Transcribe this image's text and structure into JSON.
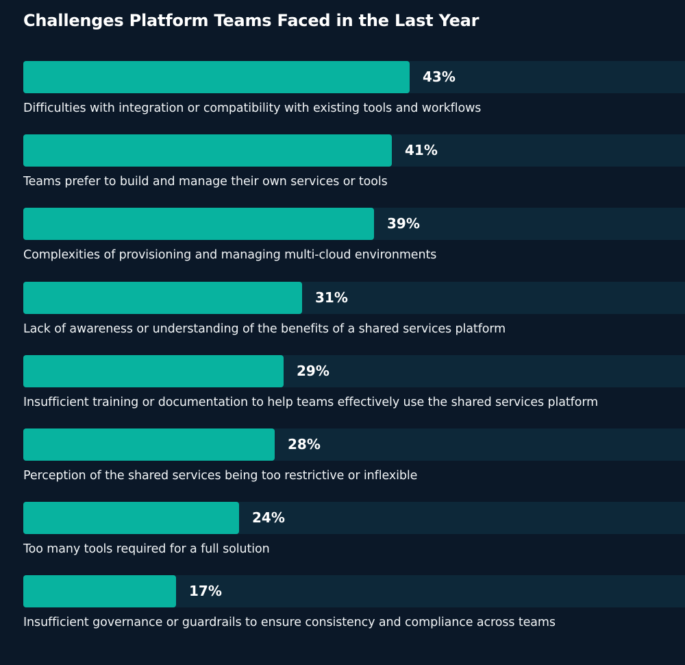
{
  "chart_data": {
    "type": "bar",
    "orientation": "horizontal",
    "title": "Challenges Platform Teams Faced in the Last Year",
    "xlim": [
      0,
      70
    ],
    "categories": [
      "Difficulties with integration or compatibility with existing tools and workflows",
      "Teams prefer to build and manage their own services or tools",
      "Complexities of provisioning and managing multi-cloud environments",
      "Lack of awareness or understanding of the benefits of a shared services platform",
      "Insufficient training or documentation to help teams effectively use the shared services platform",
      "Perception of the shared services being too restrictive or inflexible",
      "Too many tools required for a full solution",
      "Insufficient governance or guardrails to ensure consistency and compliance across teams"
    ],
    "values": [
      43,
      41,
      39,
      31,
      29,
      28,
      24,
      17
    ],
    "value_labels": [
      "43%",
      "41%",
      "39%",
      "31%",
      "29%",
      "28%",
      "24%",
      "17%"
    ],
    "colors": {
      "background": "#0b1828",
      "track": "#0d2839",
      "bar": "#08b39f",
      "text": "#ffffff"
    }
  }
}
